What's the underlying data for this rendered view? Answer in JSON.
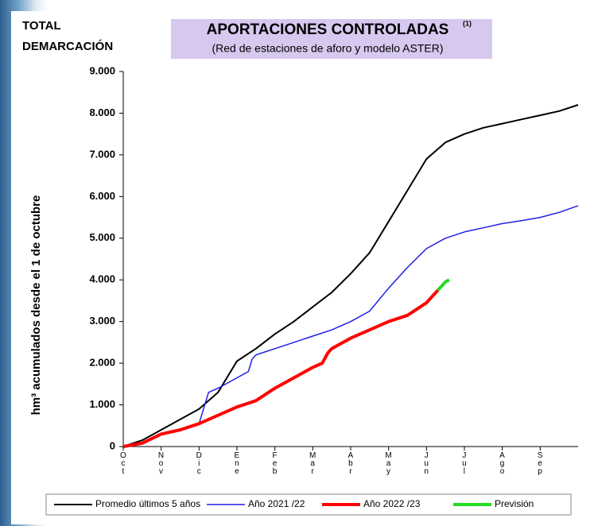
{
  "chart_data": {
    "type": "line",
    "corner_title": [
      "TOTAL",
      "DEMARCACIÓN"
    ],
    "title": "APORTACIONES CONTROLADAS",
    "title_note": "(1)",
    "subtitle": "(Red de estaciones de aforo y modelo ASTER)",
    "ylabel": "hm³ acumulados desde el 1 de octubre",
    "categories": [
      "Oct",
      "Nov",
      "Dic",
      "Ene",
      "Feb",
      "Mar",
      "Abr",
      "May",
      "Jun",
      "Jul",
      "Ago",
      "Sep"
    ],
    "xlim": [
      0,
      12
    ],
    "ylim": [
      0,
      9000
    ],
    "yticks": [
      {
        "value": 0,
        "label": "0"
      },
      {
        "value": 1000,
        "label": "1.000"
      },
      {
        "value": 2000,
        "label": "2.000"
      },
      {
        "value": 3000,
        "label": "3.000"
      },
      {
        "value": 4000,
        "label": "4.000"
      },
      {
        "value": 5000,
        "label": "5.000"
      },
      {
        "value": 6000,
        "label": "6.000"
      },
      {
        "value": 7000,
        "label": "7.000"
      },
      {
        "value": 8000,
        "label": "8.000"
      },
      {
        "value": 9000,
        "label": "9.000"
      }
    ],
    "series": [
      {
        "name": "Promedio últimos 5 años",
        "color": "#000000",
        "width": 2,
        "x": [
          0,
          0.5,
          1,
          1.5,
          2,
          2.5,
          3,
          3.5,
          4,
          4.5,
          5,
          5.5,
          6,
          6.5,
          7,
          7.5,
          8,
          8.5,
          9,
          9.5,
          10,
          10.5,
          11,
          11.5,
          12
        ],
        "values": [
          0,
          150,
          400,
          650,
          900,
          1300,
          2050,
          2350,
          2700,
          3000,
          3350,
          3700,
          4150,
          4650,
          5400,
          6150,
          6900,
          7300,
          7500,
          7650,
          7750,
          7850,
          7950,
          8050,
          8200
        ]
      },
      {
        "name": "Año 2021 /22",
        "color": "#1f1fe6",
        "width": 1.5,
        "x": [
          0,
          0.5,
          1,
          1.5,
          2,
          2.25,
          2.5,
          3,
          3.3,
          3.4,
          3.5,
          4,
          4.5,
          5,
          5.5,
          6,
          6.5,
          7,
          7.5,
          8,
          8.5,
          9,
          9.5,
          10,
          10.5,
          11,
          11.5,
          12
        ],
        "values": [
          0,
          100,
          300,
          400,
          550,
          1300,
          1400,
          1650,
          1800,
          2100,
          2200,
          2350,
          2500,
          2650,
          2800,
          3000,
          3250,
          3800,
          4300,
          4750,
          5000,
          5150,
          5250,
          5350,
          5420,
          5500,
          5620,
          5780
        ]
      },
      {
        "name": "Año 2022 /23",
        "color": "#ff0000",
        "width": 4,
        "x": [
          0,
          0.5,
          1,
          1.5,
          2,
          2.5,
          3,
          3.5,
          4,
          4.5,
          5,
          5.25,
          5.4,
          5.5,
          6,
          6.5,
          7,
          7.5,
          8,
          8.3
        ],
        "values": [
          0,
          80,
          300,
          400,
          550,
          750,
          950,
          1100,
          1400,
          1650,
          1900,
          2000,
          2250,
          2350,
          2600,
          2800,
          3000,
          3150,
          3450,
          3750
        ]
      },
      {
        "name": "Previsión",
        "color": "#22dd22",
        "width": 4,
        "x": [
          8.3,
          8.5,
          8.6
        ],
        "values": [
          3750,
          3950,
          4000
        ]
      }
    ]
  }
}
